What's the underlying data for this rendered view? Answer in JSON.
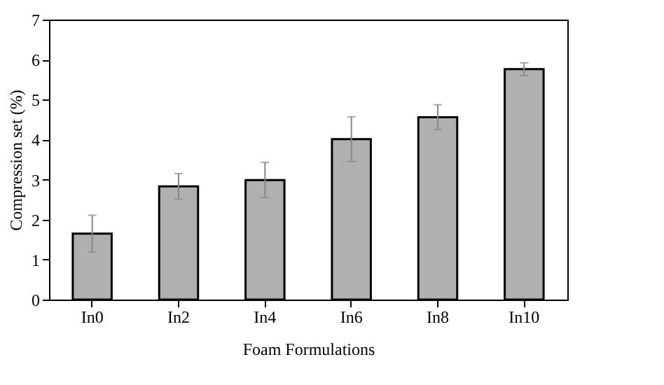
{
  "chart_data": {
    "type": "bar",
    "xlabel": "Foam Formulations",
    "ylabel": "Compression set (%)",
    "categories": [
      "In0",
      "In2",
      "In4",
      "In6",
      "In8",
      "In10"
    ],
    "values": [
      1.65,
      2.83,
      2.99,
      4.01,
      4.56,
      5.76
    ],
    "errors": [
      0.46,
      0.32,
      0.44,
      0.56,
      0.31,
      0.16
    ],
    "color": "#b0b0b0",
    "ylim": [
      0,
      7
    ],
    "yticks": [
      0,
      1,
      2,
      3,
      4,
      5,
      6,
      7
    ],
    "grid": false
  }
}
